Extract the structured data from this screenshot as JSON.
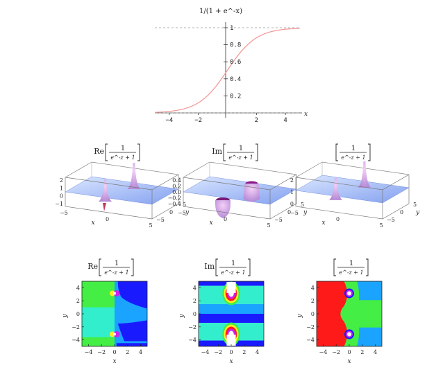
{
  "top_plot": {
    "title": "1/(1 + e^-x)",
    "x_axis_label": "x",
    "x_ticks": [
      "-4",
      "-2",
      "2",
      "4"
    ],
    "y_ticks": [
      "0.2",
      "0.4",
      "0.6",
      "0.8",
      "1"
    ]
  },
  "row2": {
    "panels": [
      {
        "title_prefix": "Re",
        "fraction_num": "1",
        "fraction_den": "e^-z + 1",
        "z_ticks": [
          "-1",
          "0",
          "1",
          "2"
        ],
        "x_ticks": [
          "-5",
          "0",
          "5"
        ],
        "y_ticks": [
          "5",
          "0",
          "-5"
        ],
        "x_label": "x",
        "y_label": "y"
      },
      {
        "title_prefix": "Im",
        "fraction_num": "1",
        "fraction_den": "e^-z + 1",
        "z_ticks": [
          "-0.4",
          "-0.2",
          "0.0",
          "0.2",
          "0.4"
        ],
        "x_ticks": [
          "-5",
          "0",
          "5"
        ],
        "y_ticks": [
          "5",
          "0",
          "-5"
        ],
        "x_label": "x",
        "y_label": "y"
      },
      {
        "title_prefix": "",
        "fraction_num": "1",
        "fraction_den": "e^-z + 1",
        "z_ticks": [
          "0",
          "1",
          "2"
        ],
        "x_ticks": [
          "-5",
          "0",
          "5"
        ],
        "y_ticks": [
          "5",
          "0",
          "-5"
        ],
        "x_label": "x",
        "y_label": "y"
      }
    ]
  },
  "row3": {
    "panels": [
      {
        "title_prefix": "Re",
        "fraction_num": "1",
        "fraction_den": "e^-z + 1",
        "x_ticks": [
          "-4",
          "-2",
          "0",
          "2",
          "4"
        ],
        "y_ticks": [
          "4",
          "2",
          "0",
          "-2",
          "-4"
        ],
        "x_label": "x",
        "y_label": "y"
      },
      {
        "title_prefix": "Im",
        "fraction_num": "1",
        "fraction_den": "e^-z + 1",
        "x_ticks": [
          "-4",
          "-2",
          "0",
          "2",
          "4"
        ],
        "y_ticks": [
          "4",
          "2",
          "0",
          "-2",
          "-4"
        ],
        "x_label": "x",
        "y_label": "y"
      },
      {
        "title_prefix": "",
        "fraction_num": "1",
        "fraction_den": "e^-z + 1",
        "x_ticks": [
          "-4",
          "-2",
          "0",
          "2",
          "4"
        ],
        "y_ticks": [
          "4",
          "2",
          "0",
          "-2",
          "-4"
        ],
        "x_label": "x",
        "y_label": "y"
      }
    ]
  },
  "colors": {
    "curve": "#f29a9a",
    "surface_light": "#c9dcff",
    "surface_mid": "#8fb0ff",
    "spike_pink": "#e8b4f2",
    "contour_green": "#44ee44",
    "contour_cyan": "#33eecc",
    "contour_blue": "#1a1aff",
    "contour_sky": "#1aa4ff",
    "contour_red": "#ff1a1a",
    "contour_yellow": "#ffee22"
  },
  "chart_data": [
    {
      "type": "line",
      "title": "1/(1 + e^-x)",
      "xlabel": "x",
      "ylabel": "",
      "xlim": [
        -5,
        5
      ],
      "ylim": [
        0,
        1
      ],
      "x": [
        -5,
        -4,
        -3,
        -2,
        -1,
        0,
        1,
        2,
        3,
        4,
        5
      ],
      "series": [
        {
          "values": [
            0.007,
            0.018,
            0.047,
            0.119,
            0.269,
            0.5,
            0.731,
            0.881,
            0.953,
            0.982,
            0.993
          ]
        }
      ]
    },
    {
      "type": "heatmap",
      "title": "Re[1/(e^-z + 1)]",
      "xlabel": "x",
      "ylabel": "y",
      "xlim": [
        -5,
        5
      ],
      "ylim": [
        -5,
        5
      ],
      "zlim": [
        -1,
        2
      ]
    },
    {
      "type": "heatmap",
      "title": "Im[1/(e^-z + 1)]",
      "xlabel": "x",
      "ylabel": "y",
      "xlim": [
        -5,
        5
      ],
      "ylim": [
        -5,
        5
      ],
      "zlim": [
        -0.4,
        0.4
      ]
    },
    {
      "type": "heatmap",
      "title": "|1/(e^-z + 1)|",
      "xlabel": "x",
      "ylabel": "y",
      "xlim": [
        -5,
        5
      ],
      "ylim": [
        -5,
        5
      ],
      "zlim": [
        0,
        2
      ]
    }
  ]
}
